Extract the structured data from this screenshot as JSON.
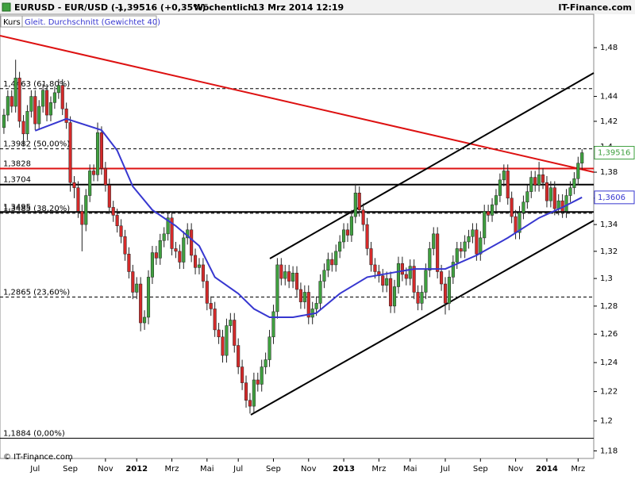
{
  "header": {
    "symbol": "EURUSD - EUR/USD (-)",
    "price": "1,39516 (+0,35%)",
    "period": "Wöchentlich",
    "datetime": "13 Mrz 2014 12:19",
    "brand": "IT-Finance.com"
  },
  "footer": "© IT-Finance.com",
  "chart_data": {
    "type": "candlestick",
    "name": "Kurs",
    "up_color": "#3fa03f",
    "down_color": "#d42a2a",
    "log_scale": true,
    "xlim": [
      -1,
      151
    ],
    "ylim": [
      1.175,
      1.508
    ],
    "xticks": [
      {
        "value": 8,
        "label": "Jul"
      },
      {
        "value": 17,
        "label": "Sep"
      },
      {
        "value": 26,
        "label": "Nov"
      },
      {
        "value": 34,
        "label": "2012",
        "bold": true
      },
      {
        "value": 43,
        "label": "Mrz"
      },
      {
        "value": 52,
        "label": "Mai"
      },
      {
        "value": 60,
        "label": "Jul"
      },
      {
        "value": 69,
        "label": "Sep"
      },
      {
        "value": 78,
        "label": "Nov"
      },
      {
        "value": 87,
        "label": "2013",
        "bold": true
      },
      {
        "value": 96,
        "label": "Mrz"
      },
      {
        "value": 104,
        "label": "Mai"
      },
      {
        "value": 113,
        "label": "Jul"
      },
      {
        "value": 122,
        "label": "Sep"
      },
      {
        "value": 131,
        "label": "Nov"
      },
      {
        "value": 139,
        "label": "2014",
        "bold": true
      },
      {
        "value": 147,
        "label": "Mrz"
      }
    ],
    "yticks": [
      {
        "value": 1.18,
        "label": "1,18"
      },
      {
        "value": 1.2,
        "label": "1,2"
      },
      {
        "value": 1.22,
        "label": "1,22"
      },
      {
        "value": 1.24,
        "label": "1,24"
      },
      {
        "value": 1.26,
        "label": "1,26"
      },
      {
        "value": 1.28,
        "label": "1,28"
      },
      {
        "value": 1.3,
        "label": "1,3"
      },
      {
        "value": 1.32,
        "label": "1,32"
      },
      {
        "value": 1.34,
        "label": "1,34"
      },
      {
        "value": 1.36,
        "label": "1,36"
      },
      {
        "value": 1.38,
        "label": "1,38"
      },
      {
        "value": 1.4,
        "label": "1,4"
      },
      {
        "value": 1.42,
        "label": "1,42"
      },
      {
        "value": 1.44,
        "label": "1,44"
      },
      {
        "value": 1.48,
        "label": "1,48"
      }
    ],
    "open": [
      1.415,
      1.425,
      1.44,
      1.432,
      1.455,
      1.42,
      1.41,
      1.428,
      1.44,
      1.418,
      1.432,
      1.445,
      1.425,
      1.435,
      1.443,
      1.449,
      1.43,
      1.419,
      1.372,
      1.368,
      1.35,
      1.34,
      1.362,
      1.381,
      1.378,
      1.411,
      1.383,
      1.37,
      1.353,
      1.347,
      1.339,
      1.331,
      1.318,
      1.305,
      1.29,
      1.296,
      1.268,
      1.272,
      1.301,
      1.319,
      1.315,
      1.328,
      1.333,
      1.345,
      1.322,
      1.32,
      1.312,
      1.33,
      1.336,
      1.317,
      1.308,
      1.31,
      1.298,
      1.282,
      1.278,
      1.263,
      1.258,
      1.245,
      1.266,
      1.27,
      1.252,
      1.237,
      1.226,
      1.214,
      1.21,
      1.228,
      1.225,
      1.237,
      1.242,
      1.258,
      1.276,
      1.31,
      1.3,
      1.305,
      1.298,
      1.304,
      1.292,
      1.283,
      1.29,
      1.272,
      1.278,
      1.282,
      1.298,
      1.306,
      1.314,
      1.31,
      1.32,
      1.327,
      1.336,
      1.332,
      1.346,
      1.364,
      1.351,
      1.34,
      1.322,
      1.31,
      1.305,
      1.302,
      1.295,
      1.3,
      1.28,
      1.294,
      1.311,
      1.303,
      1.3,
      1.309,
      1.29,
      1.282,
      1.29,
      1.306,
      1.322,
      1.333,
      1.305,
      1.296,
      1.282,
      1.301,
      1.312,
      1.322,
      1.32,
      1.327,
      1.331,
      1.336,
      1.318,
      1.33,
      1.35,
      1.347,
      1.355,
      1.362,
      1.374,
      1.381,
      1.36,
      1.346,
      1.334,
      1.349,
      1.357,
      1.365,
      1.376,
      1.37,
      1.378,
      1.372,
      1.358,
      1.368,
      1.352,
      1.358,
      1.35,
      1.362,
      1.368,
      1.375,
      1.387
    ],
    "high": [
      1.43,
      1.445,
      1.445,
      1.47,
      1.46,
      1.425,
      1.433,
      1.445,
      1.445,
      1.437,
      1.45,
      1.45,
      1.44,
      1.448,
      1.454,
      1.454,
      1.435,
      1.424,
      1.377,
      1.373,
      1.355,
      1.367,
      1.386,
      1.386,
      1.419,
      1.416,
      1.388,
      1.375,
      1.358,
      1.352,
      1.344,
      1.336,
      1.323,
      1.31,
      1.301,
      1.301,
      1.277,
      1.306,
      1.324,
      1.324,
      1.333,
      1.338,
      1.35,
      1.35,
      1.327,
      1.325,
      1.335,
      1.341,
      1.341,
      1.322,
      1.315,
      1.315,
      1.303,
      1.287,
      1.283,
      1.268,
      1.263,
      1.271,
      1.275,
      1.275,
      1.257,
      1.242,
      1.231,
      1.219,
      1.233,
      1.233,
      1.242,
      1.247,
      1.263,
      1.281,
      1.315,
      1.315,
      1.31,
      1.31,
      1.309,
      1.309,
      1.297,
      1.295,
      1.295,
      1.283,
      1.287,
      1.303,
      1.311,
      1.319,
      1.319,
      1.325,
      1.332,
      1.341,
      1.341,
      1.351,
      1.371,
      1.369,
      1.356,
      1.345,
      1.327,
      1.315,
      1.31,
      1.307,
      1.305,
      1.305,
      1.299,
      1.316,
      1.316,
      1.308,
      1.314,
      1.314,
      1.295,
      1.295,
      1.311,
      1.327,
      1.338,
      1.338,
      1.31,
      1.301,
      1.306,
      1.317,
      1.327,
      1.327,
      1.332,
      1.336,
      1.341,
      1.341,
      1.335,
      1.355,
      1.355,
      1.36,
      1.367,
      1.379,
      1.386,
      1.386,
      1.365,
      1.351,
      1.354,
      1.362,
      1.37,
      1.381,
      1.381,
      1.388,
      1.383,
      1.377,
      1.373,
      1.373,
      1.363,
      1.363,
      1.367,
      1.373,
      1.38,
      1.392,
      1.398
    ],
    "low": [
      1.41,
      1.42,
      1.427,
      1.427,
      1.415,
      1.4,
      1.405,
      1.423,
      1.413,
      1.413,
      1.427,
      1.42,
      1.42,
      1.43,
      1.438,
      1.425,
      1.414,
      1.365,
      1.36,
      1.345,
      1.32,
      1.335,
      1.357,
      1.373,
      1.373,
      1.378,
      1.365,
      1.348,
      1.342,
      1.334,
      1.326,
      1.313,
      1.3,
      1.285,
      1.285,
      1.262,
      1.263,
      1.267,
      1.296,
      1.31,
      1.31,
      1.323,
      1.328,
      1.317,
      1.315,
      1.307,
      1.307,
      1.325,
      1.312,
      1.303,
      1.303,
      1.293,
      1.277,
      1.273,
      1.258,
      1.253,
      1.24,
      1.24,
      1.261,
      1.247,
      1.232,
      1.221,
      1.209,
      1.205,
      1.205,
      1.22,
      1.22,
      1.232,
      1.237,
      1.253,
      1.271,
      1.295,
      1.295,
      1.293,
      1.293,
      1.287,
      1.278,
      1.278,
      1.267,
      1.267,
      1.273,
      1.277,
      1.293,
      1.301,
      1.305,
      1.305,
      1.315,
      1.322,
      1.327,
      1.327,
      1.341,
      1.346,
      1.335,
      1.317,
      1.305,
      1.3,
      1.297,
      1.29,
      1.29,
      1.275,
      1.275,
      1.289,
      1.298,
      1.295,
      1.295,
      1.285,
      1.277,
      1.277,
      1.285,
      1.301,
      1.317,
      1.3,
      1.291,
      1.274,
      1.277,
      1.296,
      1.307,
      1.315,
      1.315,
      1.322,
      1.326,
      1.313,
      1.313,
      1.325,
      1.342,
      1.342,
      1.35,
      1.357,
      1.369,
      1.355,
      1.341,
      1.329,
      1.329,
      1.344,
      1.352,
      1.36,
      1.365,
      1.365,
      1.367,
      1.353,
      1.353,
      1.347,
      1.347,
      1.345,
      1.345,
      1.357,
      1.363,
      1.37,
      1.382
    ],
    "close": [
      1.425,
      1.44,
      1.432,
      1.455,
      1.42,
      1.41,
      1.428,
      1.44,
      1.418,
      1.432,
      1.445,
      1.425,
      1.435,
      1.443,
      1.449,
      1.43,
      1.419,
      1.372,
      1.368,
      1.35,
      1.34,
      1.362,
      1.381,
      1.378,
      1.411,
      1.383,
      1.37,
      1.353,
      1.347,
      1.339,
      1.331,
      1.318,
      1.305,
      1.29,
      1.296,
      1.268,
      1.272,
      1.301,
      1.319,
      1.315,
      1.328,
      1.333,
      1.345,
      1.322,
      1.32,
      1.312,
      1.33,
      1.336,
      1.317,
      1.308,
      1.31,
      1.298,
      1.282,
      1.278,
      1.263,
      1.258,
      1.245,
      1.266,
      1.27,
      1.252,
      1.237,
      1.226,
      1.214,
      1.21,
      1.228,
      1.225,
      1.237,
      1.242,
      1.258,
      1.276,
      1.31,
      1.3,
      1.305,
      1.298,
      1.304,
      1.292,
      1.283,
      1.29,
      1.272,
      1.278,
      1.282,
      1.298,
      1.306,
      1.314,
      1.31,
      1.32,
      1.327,
      1.336,
      1.332,
      1.346,
      1.364,
      1.351,
      1.34,
      1.322,
      1.31,
      1.305,
      1.302,
      1.295,
      1.3,
      1.28,
      1.294,
      1.311,
      1.303,
      1.3,
      1.309,
      1.29,
      1.282,
      1.29,
      1.306,
      1.322,
      1.333,
      1.305,
      1.296,
      1.282,
      1.301,
      1.312,
      1.322,
      1.32,
      1.327,
      1.331,
      1.336,
      1.318,
      1.33,
      1.35,
      1.347,
      1.355,
      1.362,
      1.374,
      1.381,
      1.36,
      1.346,
      1.334,
      1.349,
      1.357,
      1.365,
      1.376,
      1.37,
      1.378,
      1.372,
      1.358,
      1.368,
      1.352,
      1.358,
      1.35,
      1.362,
      1.368,
      1.375,
      1.387,
      1.39516
    ],
    "moving_average": {
      "name": "Gleit. Durchschnitt (Gewichtet 40)",
      "color": "#3737d0",
      "x": [
        8,
        16,
        25,
        29,
        33,
        38,
        44,
        50,
        54,
        60,
        64,
        68,
        74,
        80,
        86,
        93,
        99,
        105,
        113,
        121,
        129,
        137,
        143,
        148
      ],
      "values": [
        1.4125,
        1.422,
        1.413,
        1.397,
        1.369,
        1.351,
        1.339,
        1.324,
        1.301,
        1.289,
        1.278,
        1.272,
        1.272,
        1.275,
        1.289,
        1.301,
        1.304,
        1.307,
        1.307,
        1.317,
        1.33,
        1.345,
        1.353,
        1.3606
      ]
    },
    "levels": [
      {
        "value": 1.4463,
        "label": "1,4463 (61,80%)",
        "style": "dashed",
        "color": "#000000"
      },
      {
        "value": 1.3982,
        "label": "1,3982 (50,00%)",
        "style": "dashed",
        "color": "#000000"
      },
      {
        "value": 1.3828,
        "label": "1,3828",
        "style": "solid",
        "color": "#dd1111"
      },
      {
        "value": 1.3704,
        "label": "1,3704",
        "style": "solid",
        "color": "#000000"
      },
      {
        "value": 1.3495,
        "label": "1,3495",
        "style": "solid",
        "color": "#000000"
      },
      {
        "value": 1.3485,
        "label": "1,3485 (38,20%)",
        "style": "dashed",
        "color": "#000000"
      },
      {
        "value": 1.2865,
        "label": "1,2865 (23,60%)",
        "style": "dashed",
        "color": "#000000"
      },
      {
        "value": 1.1884,
        "label": "1,1884 (0,00%)",
        "style": "thin",
        "color": "#000000"
      }
    ],
    "price_boxes": [
      {
        "value": 1.39516,
        "label": "1,39516",
        "color": "#3fa03f"
      },
      {
        "value": 1.3606,
        "label": "1,3606",
        "color": "#3737d0"
      }
    ]
  }
}
